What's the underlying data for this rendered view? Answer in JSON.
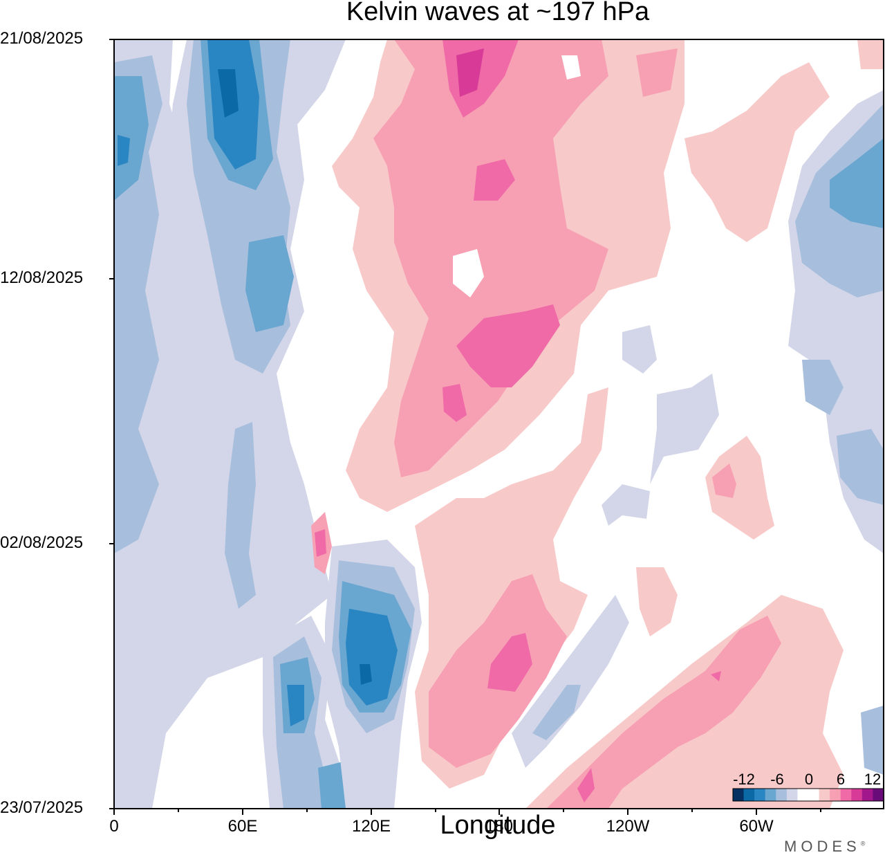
{
  "chart_data": {
    "type": "heatmap",
    "title": "Kelvin waves at ~197 hPa",
    "xlabel": "Longitude",
    "ylabel": "",
    "x_ticks": [
      "0",
      "60E",
      "120E",
      "180",
      "120W",
      "60W"
    ],
    "y_ticks": [
      "21/08/2025",
      "12/08/2025",
      "02/08/2025",
      "23/07/2025"
    ],
    "colorbar": {
      "tick_labels": [
        "-12",
        "-6",
        "0",
        "6",
        "12"
      ],
      "colors": [
        "#053061",
        "#0b6aa6",
        "#2a86c2",
        "#69a6d0",
        "#a7bedd",
        "#d3d6e8",
        "#ffffff",
        "#ffffff",
        "#f8c9c9",
        "#f7a0b4",
        "#ef6aa6",
        "#d83b97",
        "#a2178c",
        "#6a0b7a"
      ],
      "units_note": "",
      "placement": "bottom-right"
    },
    "contour_levels": {
      "blue_light": "#d3d6e8",
      "blue_medium": "#a7bedd",
      "blue_mid": "#69a6d0",
      "blue_strong": "#2a86c2",
      "blue_deep": "#0b6aa6",
      "pink_light": "#f8c9c9",
      "pink_medium": "#f7a0b4",
      "pink_strong": "#ef6aa6",
      "pink_deep": "#d83b97"
    }
  },
  "brand": "MODES",
  "brand_mark": "®"
}
